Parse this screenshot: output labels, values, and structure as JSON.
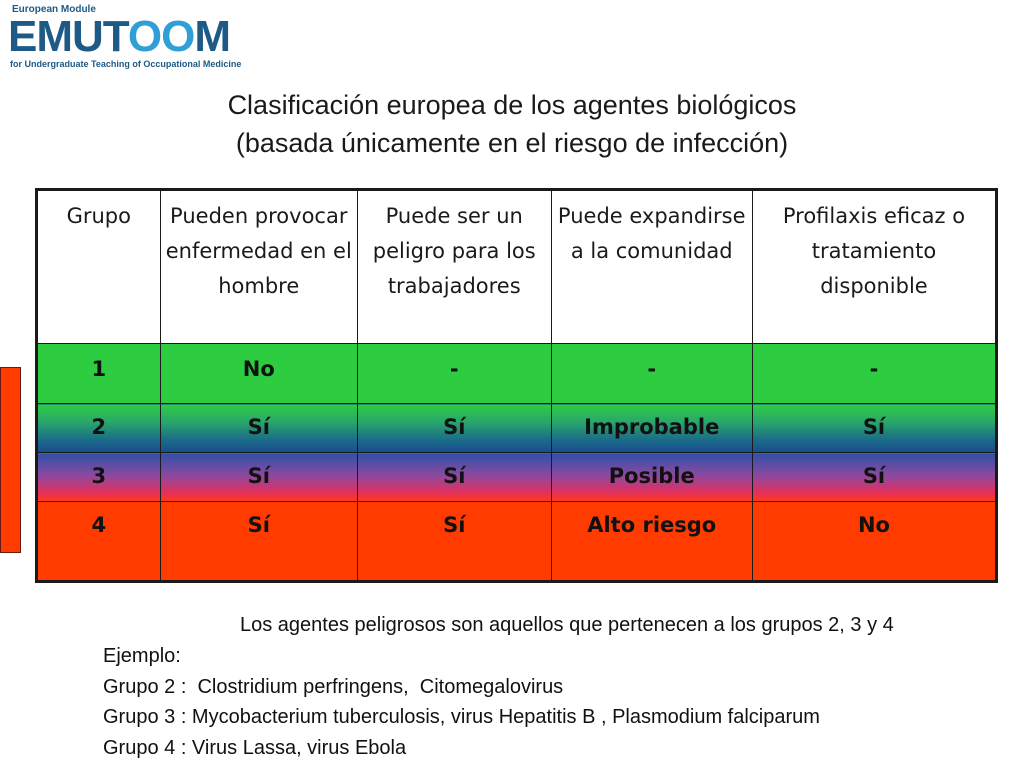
{
  "logo": {
    "top": "European Module",
    "main_a": "EMUT",
    "main_b": "OO",
    "main_c": "M",
    "bottom": "for Undergraduate Teaching of Occupational Medicine"
  },
  "title": {
    "line1": "Clasificación europea de los agentes biológicos",
    "line2": "(basada únicamente en el riesgo de infección)"
  },
  "table": {
    "headers": [
      "Grupo",
      "Pueden provocar enfermedad en el hombre",
      "Puede ser un peligro para los trabajadores",
      "Puede expandirse a la comunidad",
      "Profilaxis eficaz o tratamiento disponible"
    ],
    "rows": [
      [
        "1",
        "No",
        "-",
        "-",
        "-"
      ],
      [
        "2",
        "Sí",
        "Sí",
        "Improbable",
        "Sí"
      ],
      [
        "3",
        "Sí",
        "Sí",
        "Posible",
        "Sí"
      ],
      [
        "4",
        "Sí",
        "Sí",
        "Alto riesgo",
        "No"
      ]
    ]
  },
  "note": "Los agentes peligrosos son aquellos que pertenecen a los grupos 2, 3 y 4",
  "examples": [
    "Ejemplo:",
    "Grupo 2 :  Clostridium perfringens,  Citomegalovirus",
    "Grupo 3 : Mycobacterium tuberculosis, virus Hepatitis B , Plasmodium falciparum",
    "Grupo 4 : Virus Lassa, virus Ebola"
  ],
  "colors": {
    "group1": "#2ecc40",
    "group2": "#1a4d8c",
    "group3": "#8a4aa0",
    "group4": "#ff3b00"
  }
}
